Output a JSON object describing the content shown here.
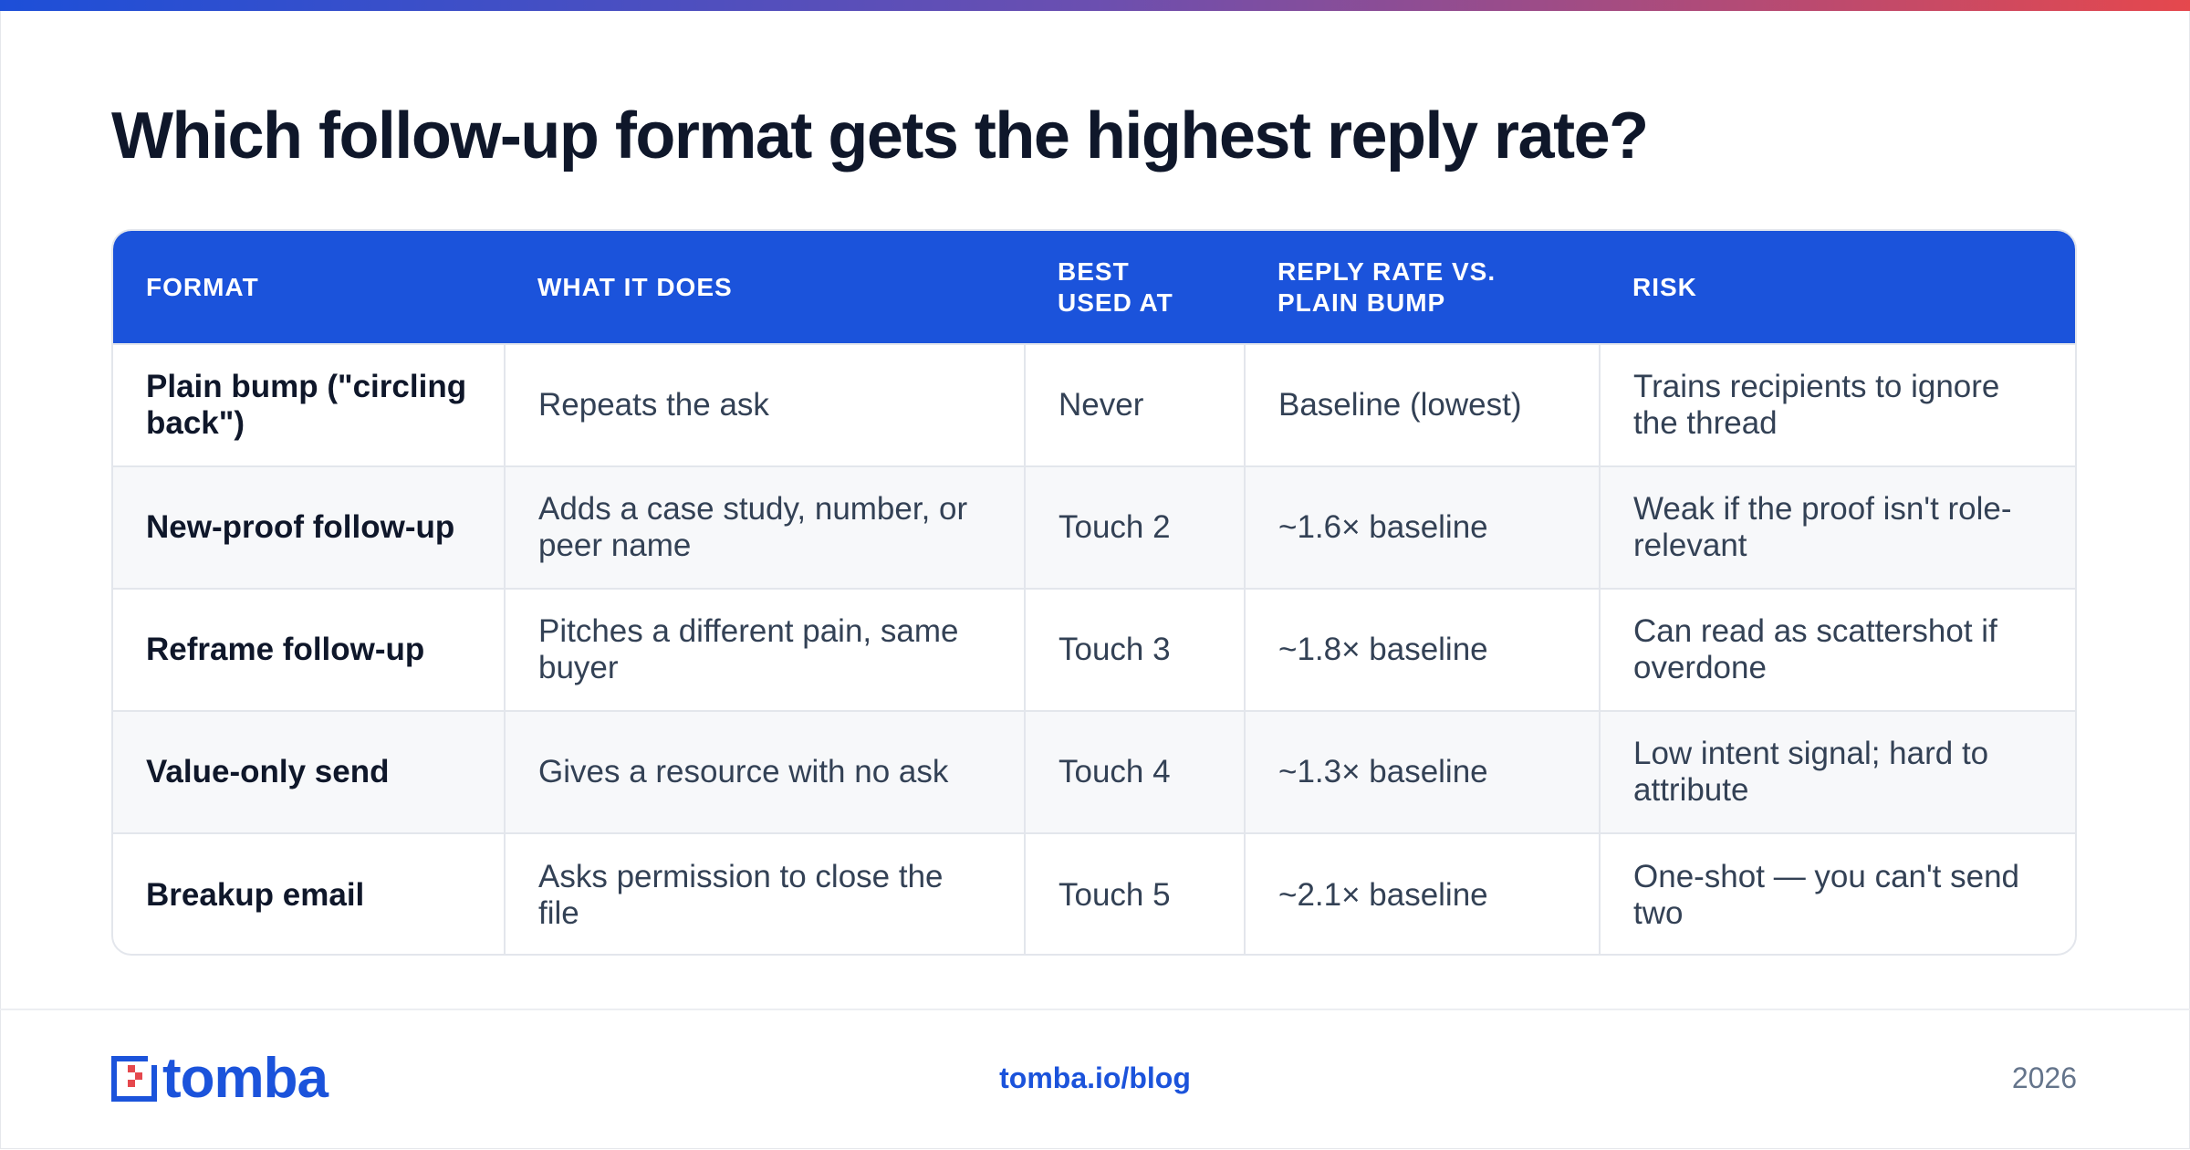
{
  "page": {
    "title": "Which follow-up format gets the highest reply rate?"
  },
  "table": {
    "headers": [
      "FORMAT",
      "WHAT IT DOES",
      "BEST USED AT",
      "REPLY RATE VS. PLAIN BUMP",
      "RISK"
    ],
    "rows": [
      [
        "Plain bump (\"circling back\")",
        "Repeats the ask",
        "Never",
        "Baseline (lowest)",
        "Trains recipients to ignore the thread"
      ],
      [
        "New-proof follow-up",
        "Adds a case study, number, or peer name",
        "Touch 2",
        "~1.6× baseline",
        "Weak if the proof isn't role-relevant"
      ],
      [
        "Reframe follow-up",
        "Pitches a different pain, same buyer",
        "Touch 3",
        "~1.8× baseline",
        "Can read as scattershot if overdone"
      ],
      [
        "Value-only send",
        "Gives a resource with no ask",
        "Touch 4",
        "~1.3× baseline",
        "Low intent signal; hard to attribute"
      ],
      [
        "Breakup email",
        "Asks permission to close the file",
        "Touch 5",
        "~2.1× baseline",
        "One-shot — you can't send two"
      ]
    ]
  },
  "footer": {
    "logo_text": "tomba",
    "url": "tomba.io/blog",
    "year": "2026"
  },
  "colors": {
    "accent": "#1b53db",
    "logo_red": "#e5484d",
    "gradient": [
      "#1d4fd8",
      "#6b4fb0",
      "#e5484d"
    ]
  }
}
